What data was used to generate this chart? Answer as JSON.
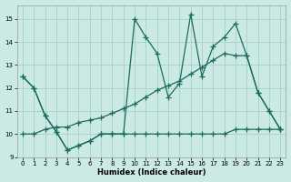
{
  "xlabel": "Humidex (Indice chaleur)",
  "bg_color": "#cceae4",
  "grid_color": "#aad4cc",
  "line_color": "#1a6b60",
  "xlim": [
    -0.5,
    23.5
  ],
  "ylim": [
    9,
    15.6
  ],
  "yticks": [
    9,
    10,
    11,
    12,
    13,
    14,
    15
  ],
  "xticks": [
    0,
    1,
    2,
    3,
    4,
    5,
    6,
    7,
    8,
    9,
    10,
    11,
    12,
    13,
    14,
    15,
    16,
    17,
    18,
    19,
    20,
    21,
    22,
    23
  ],
  "line1_x": [
    0,
    1,
    2,
    3,
    4,
    5,
    6,
    7,
    8,
    9,
    10,
    11,
    12,
    13,
    14,
    15,
    16,
    17,
    18,
    19,
    20,
    21,
    22,
    23
  ],
  "line1_y": [
    12.5,
    12.0,
    10.8,
    10.1,
    9.3,
    9.5,
    9.7,
    10.0,
    10.0,
    10.0,
    10.0,
    10.0,
    10.0,
    10.0,
    10.0,
    10.0,
    10.0,
    10.0,
    10.0,
    10.2,
    10.2,
    10.2,
    10.2,
    10.2
  ],
  "line2_x": [
    0,
    1,
    2,
    3,
    4,
    5,
    6,
    7,
    8,
    9,
    10,
    11,
    12,
    13,
    14,
    15,
    16,
    17,
    18,
    19,
    20,
    21,
    22,
    23
  ],
  "line2_y": [
    12.5,
    12.0,
    10.8,
    10.1,
    9.3,
    9.5,
    9.7,
    10.0,
    10.0,
    10.0,
    15.0,
    14.2,
    13.5,
    11.6,
    12.2,
    15.2,
    12.5,
    13.8,
    14.2,
    14.8,
    13.4,
    11.8,
    11.0,
    10.2
  ],
  "line3_x": [
    0,
    1,
    2,
    3,
    4,
    5,
    6,
    7,
    8,
    9,
    10,
    11,
    12,
    13,
    14,
    15,
    16,
    17,
    18,
    19,
    20,
    21,
    22,
    23
  ],
  "line3_y": [
    10.0,
    10.0,
    10.2,
    10.3,
    10.3,
    10.5,
    10.6,
    10.7,
    10.9,
    11.1,
    11.3,
    11.6,
    11.9,
    12.1,
    12.3,
    12.6,
    12.9,
    13.2,
    13.5,
    13.4,
    13.4,
    11.8,
    11.0,
    10.2
  ]
}
